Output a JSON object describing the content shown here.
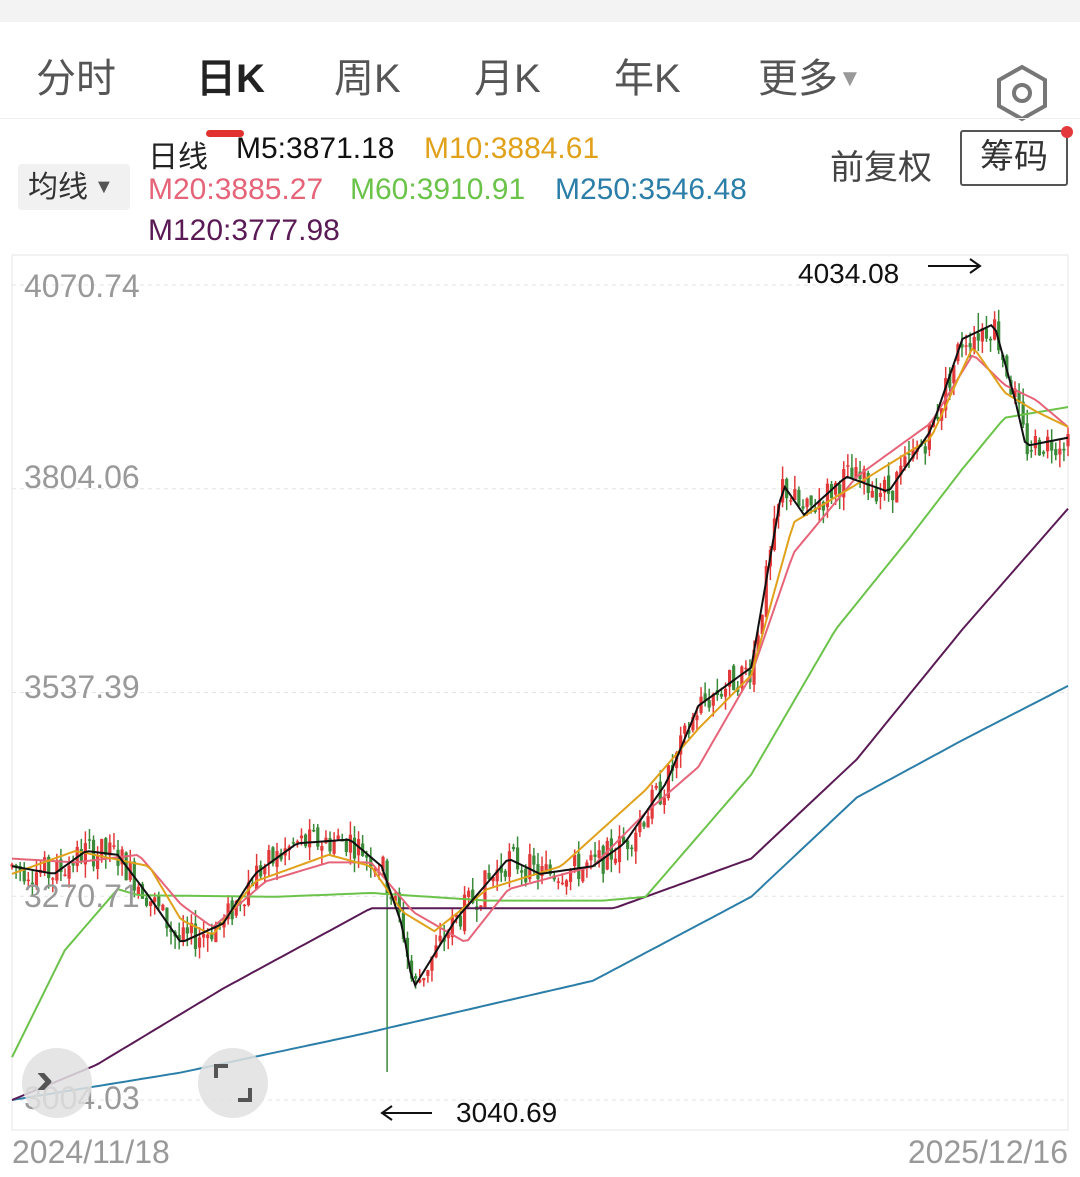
{
  "tabs": [
    {
      "label": "分时"
    },
    {
      "label": "日K"
    },
    {
      "label": "周K"
    },
    {
      "label": "月K"
    },
    {
      "label": "年K"
    },
    {
      "label": "更多"
    }
  ],
  "indicator": {
    "selector_label": "均线",
    "line_label": "日线",
    "ma": [
      {
        "label": "M5:3871.18",
        "color": "#111111"
      },
      {
        "label": "M10:3884.61",
        "color": "#e0a11b"
      },
      {
        "label": "M20:3885.27",
        "color": "#e66479"
      },
      {
        "label": "M60:3910.91",
        "color": "#6bc34a"
      },
      {
        "label": "M250:3546.48",
        "color": "#2b7ea8"
      },
      {
        "label": "M120:3777.98",
        "color": "#5a1a55"
      }
    ]
  },
  "controls": {
    "adjust_label": "前复权",
    "chips_label": "筹码"
  },
  "chart": {
    "y_labels": [
      "4070.74",
      "3804.06",
      "3537.39",
      "3270.71",
      "3004.03"
    ],
    "x_start": "2024/11/18",
    "x_end": "2025/12/16",
    "high_annotation": "4034.08",
    "low_annotation": "3040.69"
  },
  "chart_data": {
    "type": "candlestick",
    "ylim": [
      3004.03,
      4070.74
    ],
    "y_ticks": [
      4070.74,
      3804.06,
      3537.39,
      3270.71,
      3004.03
    ],
    "x_range": [
      "2024/11/18",
      "2025/12/16"
    ],
    "high": 4034.08,
    "low": 3040.69,
    "series": [
      {
        "name": "M5",
        "last": 3871.18
      },
      {
        "name": "M10",
        "last": 3884.61
      },
      {
        "name": "M20",
        "last": 3885.27
      },
      {
        "name": "M60",
        "last": 3910.91
      },
      {
        "name": "M120",
        "last": 3777.98
      },
      {
        "name": "M250",
        "last": 3546.48
      }
    ],
    "ma_anchors": {
      "M250": [
        [
          0,
          3004
        ],
        [
          0.16,
          3040
        ],
        [
          0.33,
          3090
        ],
        [
          0.55,
          3160
        ],
        [
          0.7,
          3270
        ],
        [
          0.8,
          3400
        ],
        [
          0.9,
          3475
        ],
        [
          1.0,
          3546
        ]
      ],
      "M120": [
        [
          0,
          3004
        ],
        [
          0.08,
          3050
        ],
        [
          0.2,
          3150
        ],
        [
          0.34,
          3255
        ],
        [
          0.42,
          3255
        ],
        [
          0.57,
          3255
        ],
        [
          0.7,
          3320
        ],
        [
          0.8,
          3450
        ],
        [
          0.9,
          3620
        ],
        [
          1.0,
          3778
        ]
      ],
      "M60": [
        [
          0,
          3060
        ],
        [
          0.05,
          3200
        ],
        [
          0.1,
          3280
        ],
        [
          0.12,
          3272
        ],
        [
          0.25,
          3270
        ],
        [
          0.34,
          3275
        ],
        [
          0.45,
          3265
        ],
        [
          0.56,
          3265
        ],
        [
          0.6,
          3270
        ],
        [
          0.7,
          3430
        ],
        [
          0.78,
          3620
        ],
        [
          0.85,
          3740
        ],
        [
          0.9,
          3830
        ],
        [
          0.94,
          3897
        ],
        [
          1.0,
          3911
        ]
      ],
      "M20": [
        [
          0,
          3320
        ],
        [
          0.06,
          3315
        ],
        [
          0.12,
          3325
        ],
        [
          0.16,
          3260
        ],
        [
          0.19,
          3230
        ],
        [
          0.24,
          3290
        ],
        [
          0.3,
          3315
        ],
        [
          0.34,
          3315
        ],
        [
          0.38,
          3250
        ],
        [
          0.43,
          3210
        ],
        [
          0.47,
          3280
        ],
        [
          0.55,
          3310
        ],
        [
          0.6,
          3380
        ],
        [
          0.65,
          3440
        ],
        [
          0.7,
          3560
        ],
        [
          0.74,
          3720
        ],
        [
          0.8,
          3820
        ],
        [
          0.87,
          3890
        ],
        [
          0.91,
          3980
        ],
        [
          0.94,
          3940
        ],
        [
          0.97,
          3920
        ],
        [
          1.0,
          3885
        ]
      ],
      "M10": [
        [
          0,
          3300
        ],
        [
          0.06,
          3330
        ],
        [
          0.13,
          3310
        ],
        [
          0.16,
          3240
        ],
        [
          0.19,
          3220
        ],
        [
          0.23,
          3290
        ],
        [
          0.3,
          3325
        ],
        [
          0.34,
          3310
        ],
        [
          0.37,
          3250
        ],
        [
          0.4,
          3225
        ],
        [
          0.45,
          3280
        ],
        [
          0.52,
          3310
        ],
        [
          0.6,
          3410
        ],
        [
          0.65,
          3490
        ],
        [
          0.7,
          3560
        ],
        [
          0.74,
          3760
        ],
        [
          0.8,
          3810
        ],
        [
          0.87,
          3870
        ],
        [
          0.91,
          3990
        ],
        [
          0.94,
          3930
        ],
        [
          0.97,
          3905
        ],
        [
          1.0,
          3885
        ]
      ],
      "M5": [
        [
          0,
          3310
        ],
        [
          0.04,
          3300
        ],
        [
          0.07,
          3330
        ],
        [
          0.1,
          3325
        ],
        [
          0.13,
          3270
        ],
        [
          0.16,
          3210
        ],
        [
          0.2,
          3235
        ],
        [
          0.23,
          3300
        ],
        [
          0.27,
          3340
        ],
        [
          0.32,
          3345
        ],
        [
          0.35,
          3310
        ],
        [
          0.37,
          3230
        ],
        [
          0.38,
          3150
        ],
        [
          0.42,
          3240
        ],
        [
          0.47,
          3320
        ],
        [
          0.5,
          3300
        ],
        [
          0.55,
          3310
        ],
        [
          0.58,
          3340
        ],
        [
          0.62,
          3420
        ],
        [
          0.65,
          3520
        ],
        [
          0.7,
          3570
        ],
        [
          0.73,
          3810
        ],
        [
          0.75,
          3770
        ],
        [
          0.79,
          3820
        ],
        [
          0.83,
          3800
        ],
        [
          0.87,
          3880
        ],
        [
          0.9,
          4000
        ],
        [
          0.93,
          4020
        ],
        [
          0.95,
          3920
        ],
        [
          0.96,
          3860
        ],
        [
          1.0,
          3871
        ]
      ]
    }
  }
}
